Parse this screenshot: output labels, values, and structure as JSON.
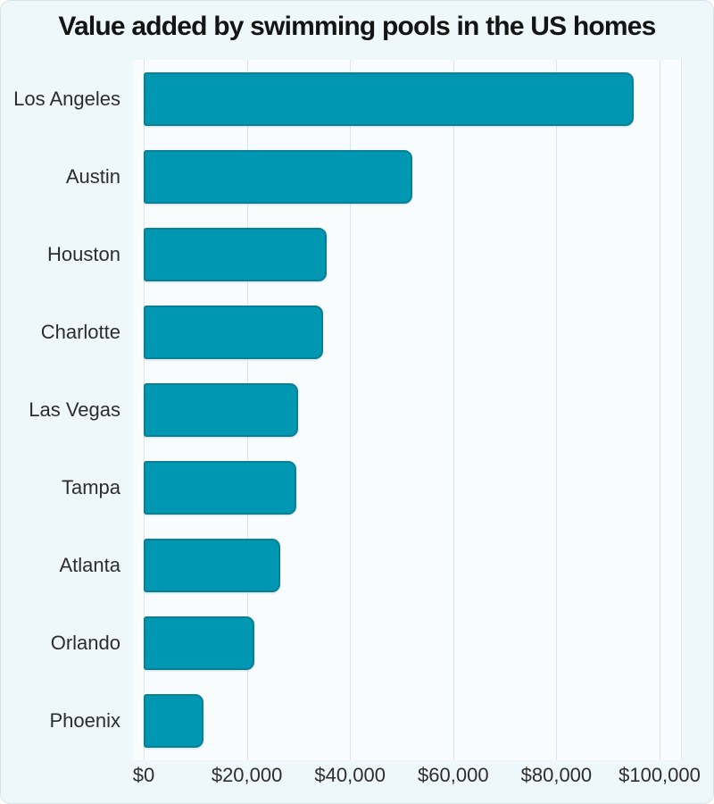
{
  "chart_data": {
    "type": "bar",
    "orientation": "horizontal",
    "title": "Value added by swimming pools in the US homes",
    "categories": [
      "Los Angeles",
      "Austin",
      "Houston",
      "Charlotte",
      "Las Vegas",
      "Tampa",
      "Atlanta",
      "Orlando",
      "Phoenix"
    ],
    "values": [
      95000,
      52000,
      35500,
      34800,
      30000,
      29500,
      26500,
      21500,
      11600
    ],
    "xlabel": "",
    "ylabel": "",
    "xlim": [
      0,
      100000
    ],
    "x_ticks": [
      0,
      20000,
      40000,
      60000,
      80000,
      100000
    ],
    "x_tick_labels": [
      "$0",
      "$20,000",
      "$40,000",
      "$60,000",
      "$80,000",
      "$100,000"
    ],
    "grid": "vertical-only",
    "legend": "none",
    "bar_color": "#0097b2",
    "bar_border_color": "#0b7f96",
    "background": "#eef7f9",
    "plot_background": "#f9fcfd",
    "gridline_color": "#dde7ea",
    "text_color": "#2d2d2d"
  }
}
